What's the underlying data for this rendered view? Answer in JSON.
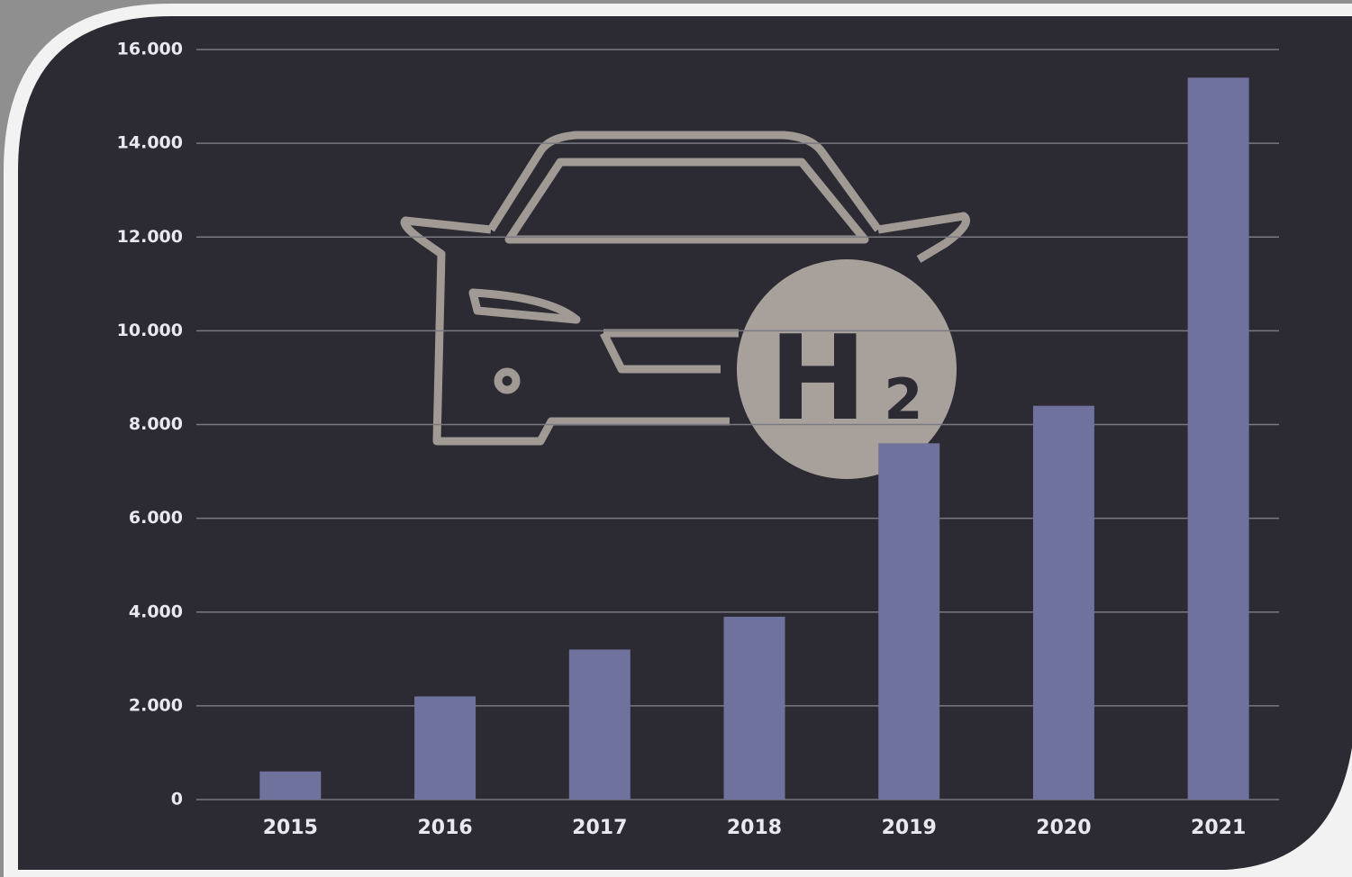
{
  "chart_data": {
    "type": "bar",
    "categories": [
      "2015",
      "2016",
      "2017",
      "2018",
      "2019",
      "2020",
      "2021"
    ],
    "values": [
      600,
      2200,
      3200,
      3900,
      7600,
      8400,
      15400
    ],
    "color": "#6e729c",
    "ylim": [
      0,
      16000
    ],
    "yticks": [
      0,
      {
        "value": 2000,
        "label": "2.000"
      },
      {
        "value": 4000,
        "label": "4.000"
      },
      {
        "value": 6000,
        "label": "6.000"
      },
      {
        "value": 8000,
        "label": "8.000"
      },
      {
        "value": 10000,
        "label": "10.000"
      },
      {
        "value": 12000,
        "label": "12.000"
      },
      {
        "value": 14000,
        "label": "14.000"
      },
      {
        "value": 16000,
        "label": "16.000"
      }
    ],
    "grid": true,
    "annotations": [
      "H",
      "2"
    ]
  }
}
